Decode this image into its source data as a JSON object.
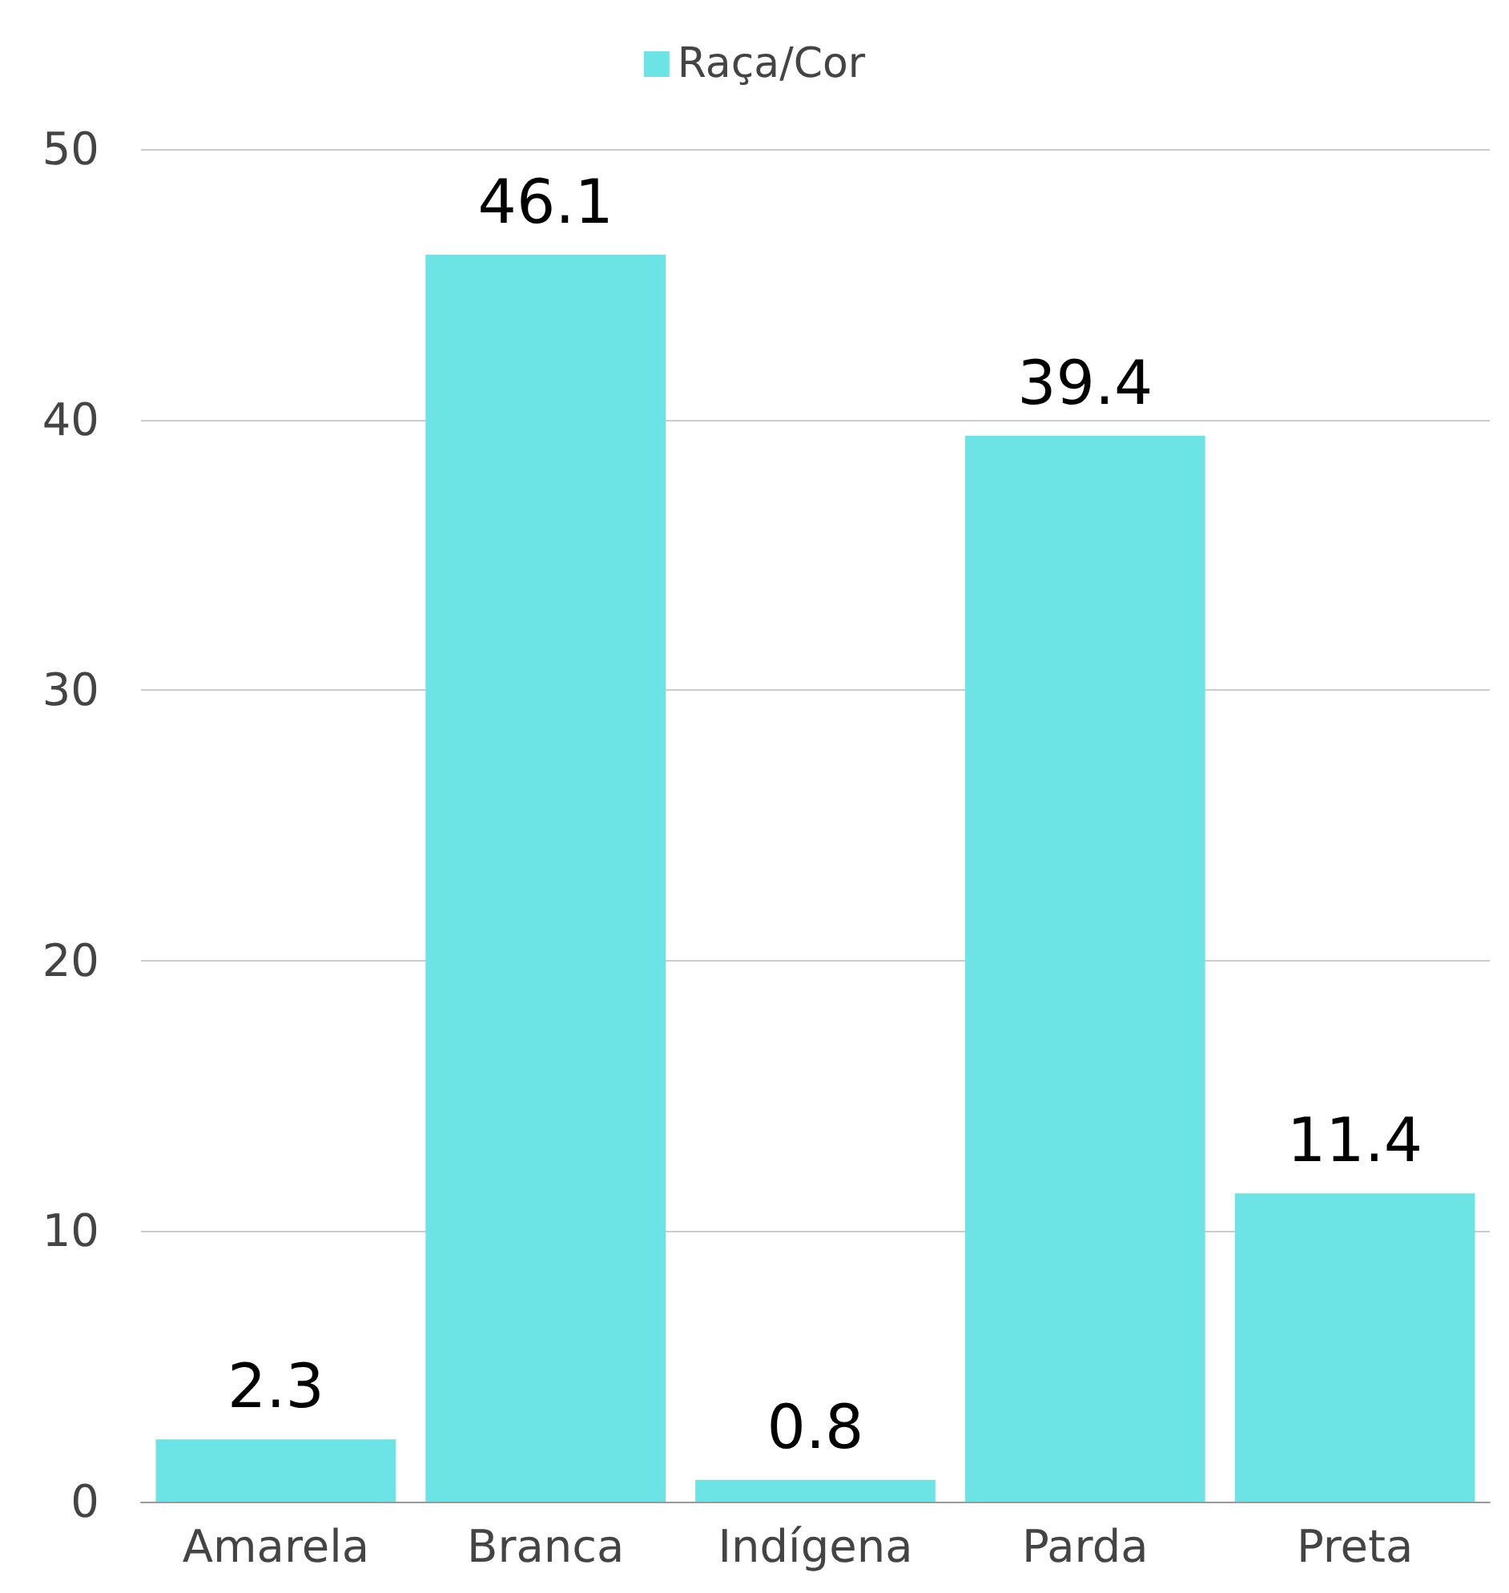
{
  "chart_data": {
    "type": "bar",
    "categories": [
      "Amarela",
      "Branca",
      "Indígena",
      "Parda",
      "Preta"
    ],
    "series": [
      {
        "name": "Raça/Cor",
        "color": "#6ce4e6",
        "values": [
          2.3,
          46.1,
          0.8,
          39.4,
          11.4
        ]
      }
    ],
    "ylim": [
      0,
      50
    ],
    "yticks": [
      0,
      10,
      20,
      30,
      40,
      50
    ],
    "grid": "y",
    "legend": "top",
    "data_labels": true
  }
}
